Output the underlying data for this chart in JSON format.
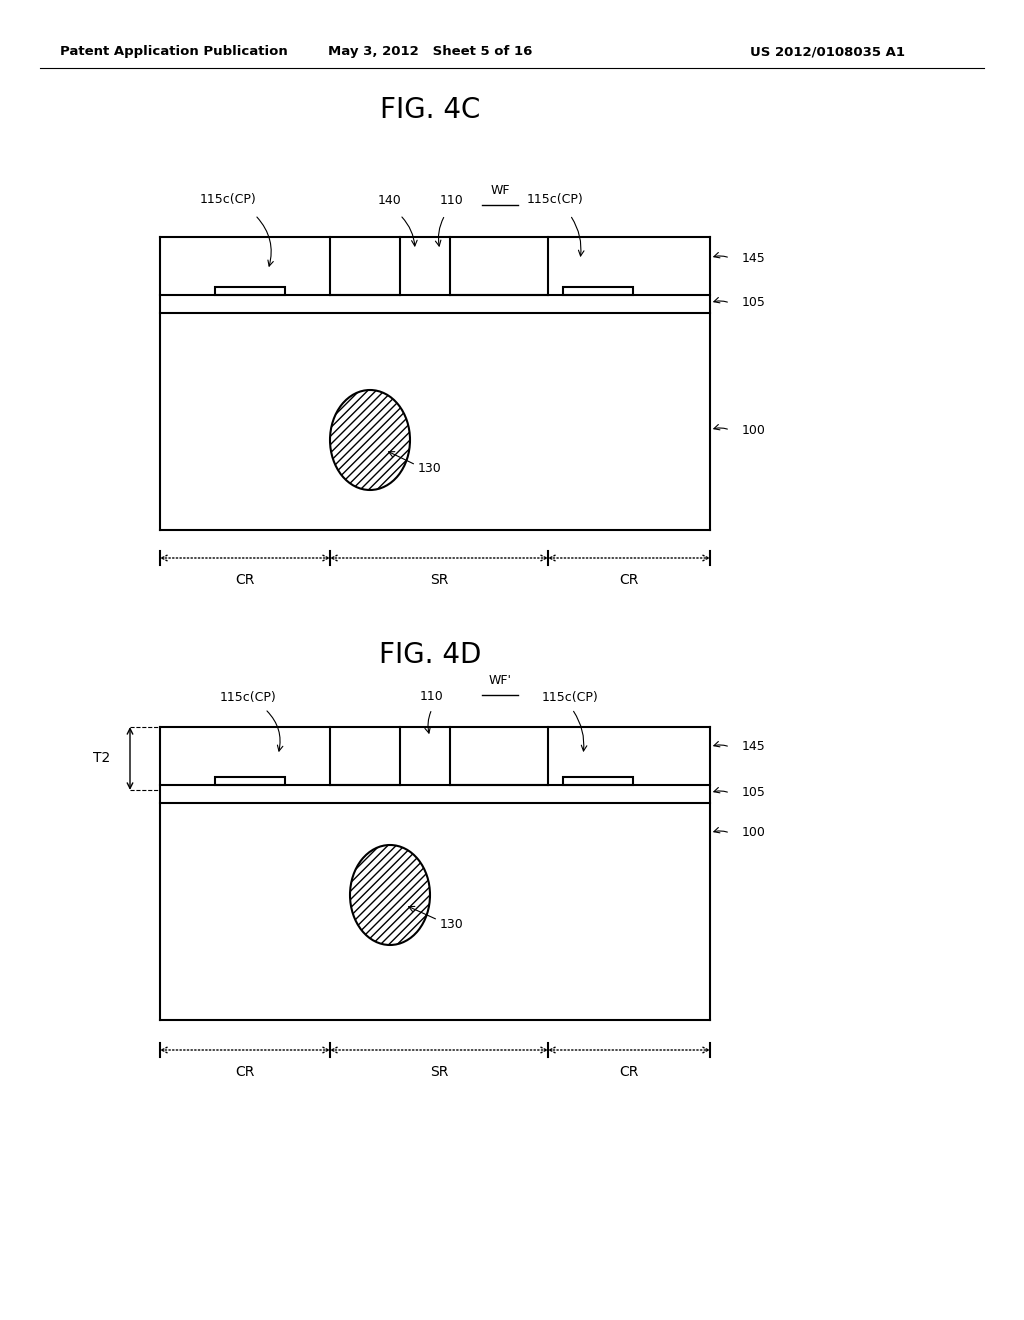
{
  "background_color": "#ffffff",
  "header_left": "Patent Application Publication",
  "header_center": "May 3, 2012   Sheet 5 of 16",
  "header_right": "US 2012/0108035 A1",
  "fig4c_title": "FIG. 4C",
  "fig4d_title": "FIG. 4D",
  "line_color": "#000000",
  "text_color": "#000000",
  "label_fontsize": 9,
  "header_fontsize": 9.5,
  "title_fontsize": 20
}
